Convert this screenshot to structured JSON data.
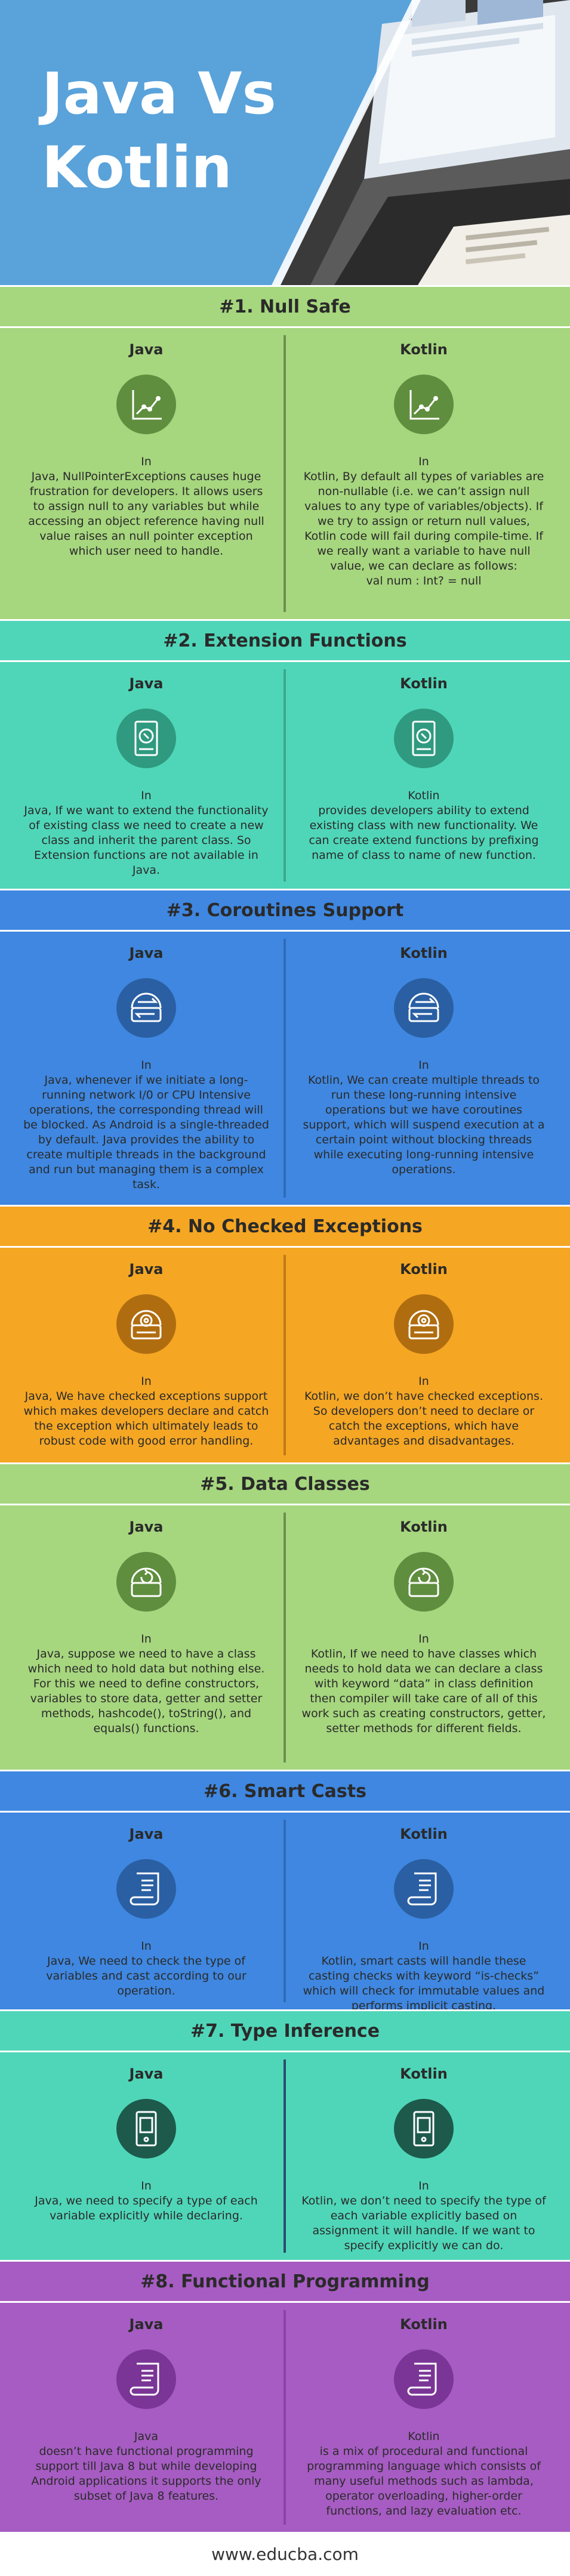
{
  "header": {
    "title_line1": "Java Vs",
    "title_line2": "Kotlin"
  },
  "column_labels": {
    "left": "Java",
    "right": "Kotlin"
  },
  "sections": [
    {
      "title": "#1. Null Safe",
      "colors": {
        "head": "#a6d67e",
        "body": "#a6d67e",
        "icon": "#5f8e3e",
        "divider": "#6b8f4f"
      },
      "icon": "chart-icon",
      "java": "In\nJava, NullPointerExceptions causes huge frustration for developers. It allows users to assign null to any variables but while accessing an object reference having null value raises an null pointer exception which user need to handle.",
      "kotlin": "In\nKotlin, By default all types of variables are non-nullable (i.e. we can’t assign null values to any type of variables/objects). If we try to assign or return null values, Kotlin code will fail during compile-time. If we really want a variable to have null value, we can declare as follows:\nval num : Int? = null"
    },
    {
      "title": "#2. Extension Functions",
      "colors": {
        "head": "#4fd6b8",
        "body": "#4fd6b8",
        "icon": "#2f9a80",
        "divider": "#3aa88d"
      },
      "icon": "disk-icon",
      "java": "In\nJava, If we want to extend the functionality of existing class we need to create a new class and inherit the parent class. So Extension functions are not available in Java.",
      "kotlin": "Kotlin\nprovides developers ability to extend existing class with new functionality. We can create extend functions by prefixing name of class to name of new function."
    },
    {
      "title": "#3. Coroutines Support",
      "colors": {
        "head": "#3f87e0",
        "body": "#3f87e0",
        "icon": "#2a5fa3",
        "divider": "#2f6bb8"
      },
      "icon": "transfer-icon",
      "java": "In\nJava, whenever if we initiate a long-running network I/0 or CPU Intensive operations, the corresponding thread will be blocked. As Android is a single-threaded by default. Java provides the ability to create multiple threads in the background and run but managing them is a complex task.",
      "kotlin": "In\nKotlin, We can create multiple threads to run these long-running intensive operations but we have coroutines support, which will suspend execution at a certain point without blocking threads while executing long-running intensive operations."
    },
    {
      "title": "#4. No Checked Exceptions",
      "colors": {
        "head": "#f5a623",
        "body": "#f5a623",
        "icon": "#b06d10",
        "divider": "#c07a15"
      },
      "icon": "gear-icon",
      "java": "In\nJava, We have checked exceptions support which makes developers declare and catch the exception which ultimately leads to robust code with good error handling.",
      "kotlin": "In\nKotlin, we don’t have checked exceptions. So developers don’t need to declare or catch the exceptions, which have advantages and disadvantages."
    },
    {
      "title": "#5. Data Classes",
      "colors": {
        "head": "#a6d67e",
        "body": "#a6d67e",
        "icon": "#5f8e3e",
        "divider": "#6b8f4f"
      },
      "icon": "refresh-icon",
      "java": "In\nJava, suppose we need to have a class which need to hold data but nothing else. For this we need to define constructors, variables to store data, getter and setter methods, hashcode(), toString(), and equals() functions.",
      "kotlin": "In\nKotlin, If we need to have classes which needs to hold data we can declare a class with keyword “data” in class definition then compiler will take care of all of this work such as creating constructors, getter, setter methods for different fields."
    },
    {
      "title": "#6. Smart Casts",
      "colors": {
        "head": "#3f87e0",
        "body": "#3f87e0",
        "icon": "#2a5fa3",
        "divider": "#2f6bb8"
      },
      "icon": "scroll-icon",
      "java": "In\nJava, We need to check the type of variables and cast according to our operation.",
      "kotlin": "In\nKotlin, smart casts will handle these casting checks with keyword “is-checks” which will check for immutable values and performs implicit casting."
    },
    {
      "title": "#7. Type Inference",
      "colors": {
        "head": "#4fd6b8",
        "body": "#4fd6b8",
        "icon": "#1d5a4c",
        "divider": "#2a4a6a"
      },
      "icon": "frame-icon",
      "java": "In\nJava, we need to specify a type of each variable explicitly while declaring.",
      "kotlin": "In\nKotlin, we don’t need to specify the type of each variable explicitly based on assignment it will handle. If we want to specify explicitly we can do."
    },
    {
      "title": "#8. Functional Programming",
      "colors": {
        "head": "#a65cc2",
        "body": "#a65cc2",
        "icon": "#7a3596",
        "divider": "#8a43a8"
      },
      "icon": "scroll-icon",
      "java": "Java\ndoesn’t have functional programming support till Java 8 but while developing Android applications it supports the only subset of Java 8 features.",
      "kotlin": "Kotlin\nis a mix of procedural and functional programming language which consists of many useful methods such as lambda, operator overloading, higher-order functions, and lazy evaluation etc."
    }
  ],
  "footer": {
    "url": "www.educba.com"
  }
}
